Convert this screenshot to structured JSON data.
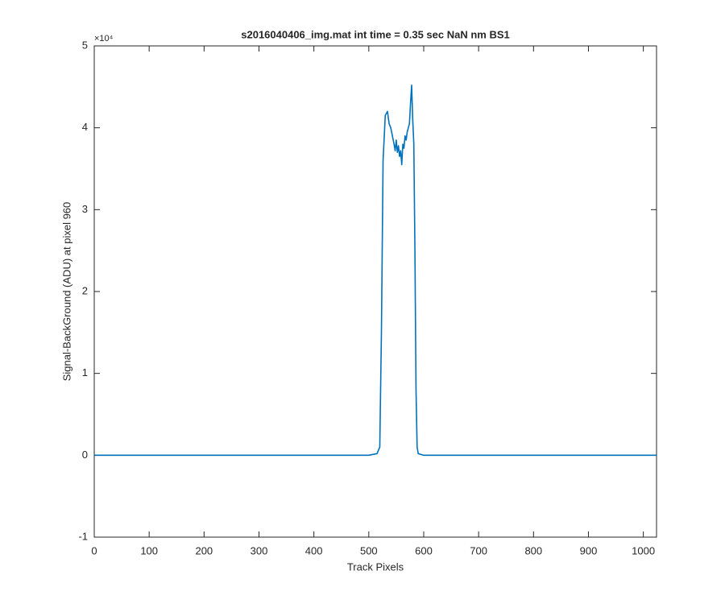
{
  "chart_data": {
    "type": "line",
    "title": "s2016040406_img.mat int time = 0.35 sec  NaN nm BS1",
    "x_label": "Track Pixels",
    "y_label": "Signal-BackGround (ADU) at pixel 960",
    "y_multiplier_label": "×10⁴",
    "x": [
      1,
      50,
      100,
      150,
      200,
      250,
      300,
      350,
      400,
      450,
      500,
      515,
      520,
      523,
      526,
      530,
      534,
      537,
      540,
      543,
      546,
      548,
      550,
      552,
      554,
      556,
      558,
      560,
      562,
      564,
      566,
      568,
      570,
      572,
      574,
      576,
      578,
      580,
      582,
      584,
      586,
      588,
      590,
      600,
      650,
      700,
      750,
      800,
      850,
      900,
      950,
      1000,
      1024
    ],
    "series": [
      {
        "color": "#0072bd",
        "values": [
          0,
          0,
          0,
          0,
          0,
          0,
          0,
          0,
          0,
          0,
          0,
          0.02,
          0.1,
          1.5,
          3.6,
          4.15,
          4.2,
          4.05,
          4.0,
          3.9,
          3.8,
          3.72,
          3.85,
          3.7,
          3.78,
          3.65,
          3.72,
          3.55,
          3.8,
          3.75,
          3.9,
          3.85,
          3.95,
          4.0,
          4.05,
          4.3,
          4.52,
          4.1,
          3.8,
          2.5,
          0.8,
          0.1,
          0.02,
          0,
          0,
          0,
          0,
          0,
          0,
          0,
          0,
          0,
          0
        ]
      }
    ],
    "xlim": [
      0,
      1024
    ],
    "xticks": [
      0,
      100,
      200,
      300,
      400,
      500,
      600,
      700,
      800,
      900,
      1000
    ],
    "ylim": [
      -1,
      5
    ],
    "yticks": [
      -1,
      0,
      1,
      2,
      3,
      4,
      5
    ]
  }
}
